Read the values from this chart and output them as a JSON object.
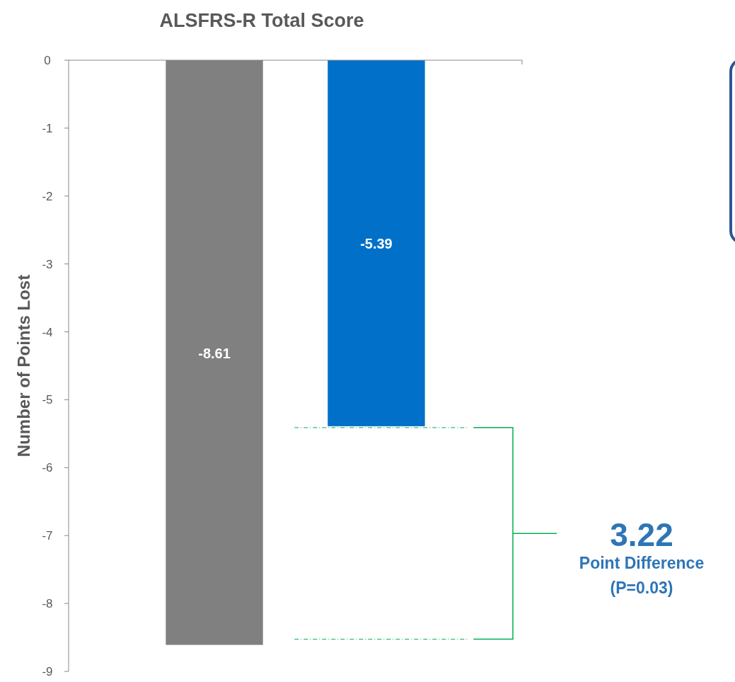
{
  "chart_data": {
    "type": "bar",
    "title": "ALSFRS-R Total Score",
    "ylabel": "Number of Points Lost",
    "categories": [
      null,
      null
    ],
    "values": [
      -8.61,
      -5.39
    ],
    "colors": [
      "#808080",
      "#0070c8"
    ],
    "ylim": [
      -9,
      0
    ],
    "yticks": [
      0,
      -1,
      -2,
      -3,
      -4,
      -5,
      -6,
      -7,
      -8,
      -9
    ],
    "data_labels": true,
    "annotations": [
      "3.22",
      "Point Difference",
      "(P=0.03)"
    ]
  }
}
